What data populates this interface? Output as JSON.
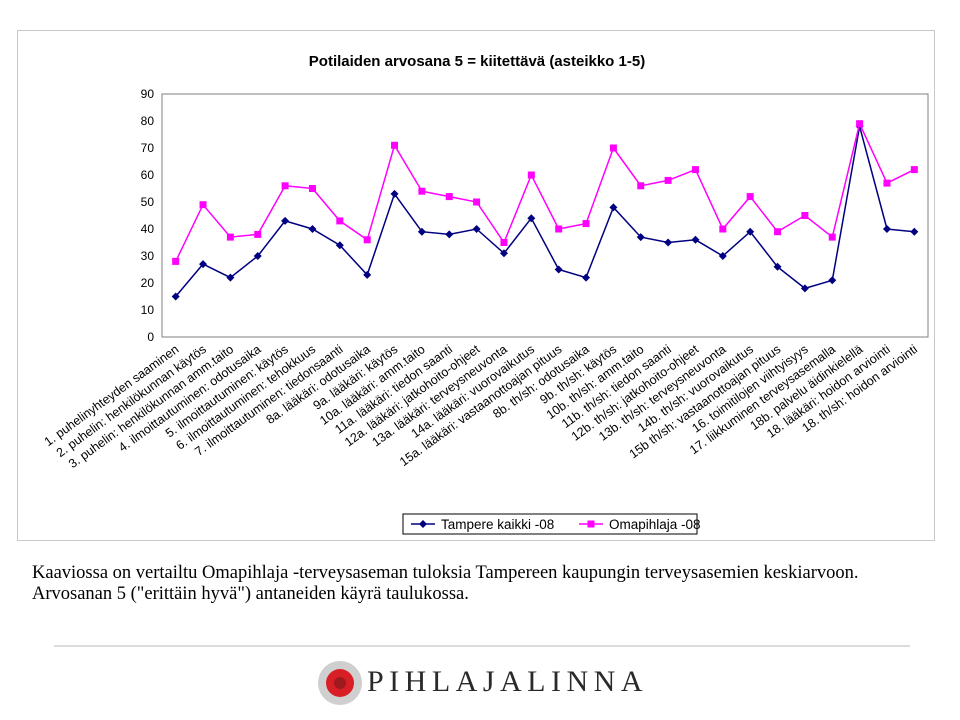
{
  "chart_data": {
    "type": "line",
    "title": "Potilaiden arvosana 5 = kiitettävä (asteikko 1-5)",
    "xlabel": "",
    "ylabel": "",
    "ylim": [
      0,
      90
    ],
    "yticks": [
      0,
      10,
      20,
      30,
      40,
      50,
      60,
      70,
      80,
      90
    ],
    "grid": false,
    "legend_position": "bottom-center",
    "categories": [
      "1. puhelinyhteyden saaminen",
      "2. puhelin: henkilökunnan käytös",
      "3. puhelin: henkilökunnan amm.taito",
      "4. ilmoittautuminen: odotusaika",
      "5. ilmoittautuminen: käytös",
      "6. ilmoittautuminen: tehokkuus",
      "7. ilmoittautuminen: tiedonsaanti",
      "8a. lääkäri: odotusaika",
      "9a. lääkäri: käytös",
      "10a. lääkäri: amm.taito",
      "11a. lääkäri: tiedon saanti",
      "12a. lääkäri: jatkohoito-ohjeet",
      "13a. lääkäri: terveysneuvonta",
      "14a. lääkäri: vuorovaikutus",
      "15a. lääkäri: vastaanottoajan pituus",
      "8b. th/sh: odotusaika",
      "9b. th/sh: käytös",
      "10b. th/sh: amm.taito",
      "11b. th/sh: tiedon saanti",
      "12b. th/sh: jatkohoito-ohjeet",
      "13b. th/sh: terveysneuvonta",
      "14b. th/sh: vuorovaikutus",
      "15b th/sh: vastaanottoajan pituus",
      "16. toimitilojen viihtyisyys",
      "17. liikkuminen terveysasemalla",
      "18b. palvelu äidinkielellä",
      "18. lääkäri: hoidon arviointi",
      "18. th/sh: hoidon arviointi"
    ],
    "series": [
      {
        "name": "Tampere kaikki -08",
        "color": "#000080",
        "marker": "diamond",
        "values": [
          15,
          27,
          22,
          30,
          43,
          40,
          34,
          23,
          53,
          39,
          38,
          40,
          31,
          44,
          25,
          22,
          48,
          37,
          35,
          36,
          30,
          39,
          26,
          18,
          21,
          78,
          40,
          39
        ]
      },
      {
        "name": "Omapihlaja -08",
        "color": "#ff00ff",
        "marker": "square",
        "values": [
          28,
          49,
          37,
          38,
          56,
          55,
          43,
          36,
          71,
          54,
          52,
          50,
          35,
          60,
          40,
          42,
          70,
          56,
          58,
          62,
          40,
          52,
          39,
          45,
          37,
          79,
          57,
          62
        ]
      }
    ]
  },
  "caption": {
    "line1": "Kaaviossa on vertailtu Omapihlaja -terveysaseman tuloksia Tampereen kaupungin terveysasemien keskiarvoon.",
    "line2": "Arvosanan 5 (\"erittäin hyvä\") antaneiden käyrä taulukossa."
  },
  "logo": {
    "text": "PIHLAJALINNA",
    "colors": {
      "red": "#d81f26",
      "dark_red": "#9e1a1e",
      "gray": "#cfcfcf"
    }
  }
}
